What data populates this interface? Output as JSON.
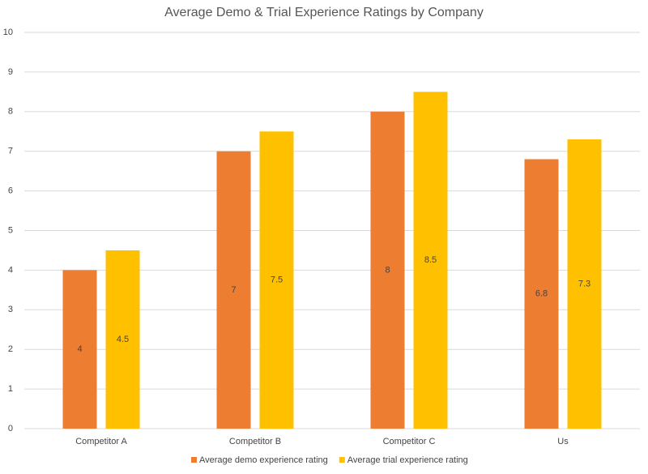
{
  "chart_data": {
    "type": "bar",
    "title": "Average Demo & Trial Experience Ratings by Company",
    "categories": [
      "Competitor A",
      "Competitor B",
      "Competitor C",
      "Us"
    ],
    "series": [
      {
        "name": "Average demo experience rating",
        "color": "#ed7d31",
        "values": [
          4,
          7,
          8,
          6.8
        ]
      },
      {
        "name": "Average trial experience rating",
        "color": "#ffc000",
        "values": [
          4.5,
          7.5,
          8.5,
          7.3
        ]
      }
    ],
    "ylim": [
      0,
      10
    ],
    "yticks": [
      0,
      1,
      2,
      3,
      4,
      5,
      6,
      7,
      8,
      9,
      10
    ],
    "grid": true,
    "legend": "bottom"
  }
}
